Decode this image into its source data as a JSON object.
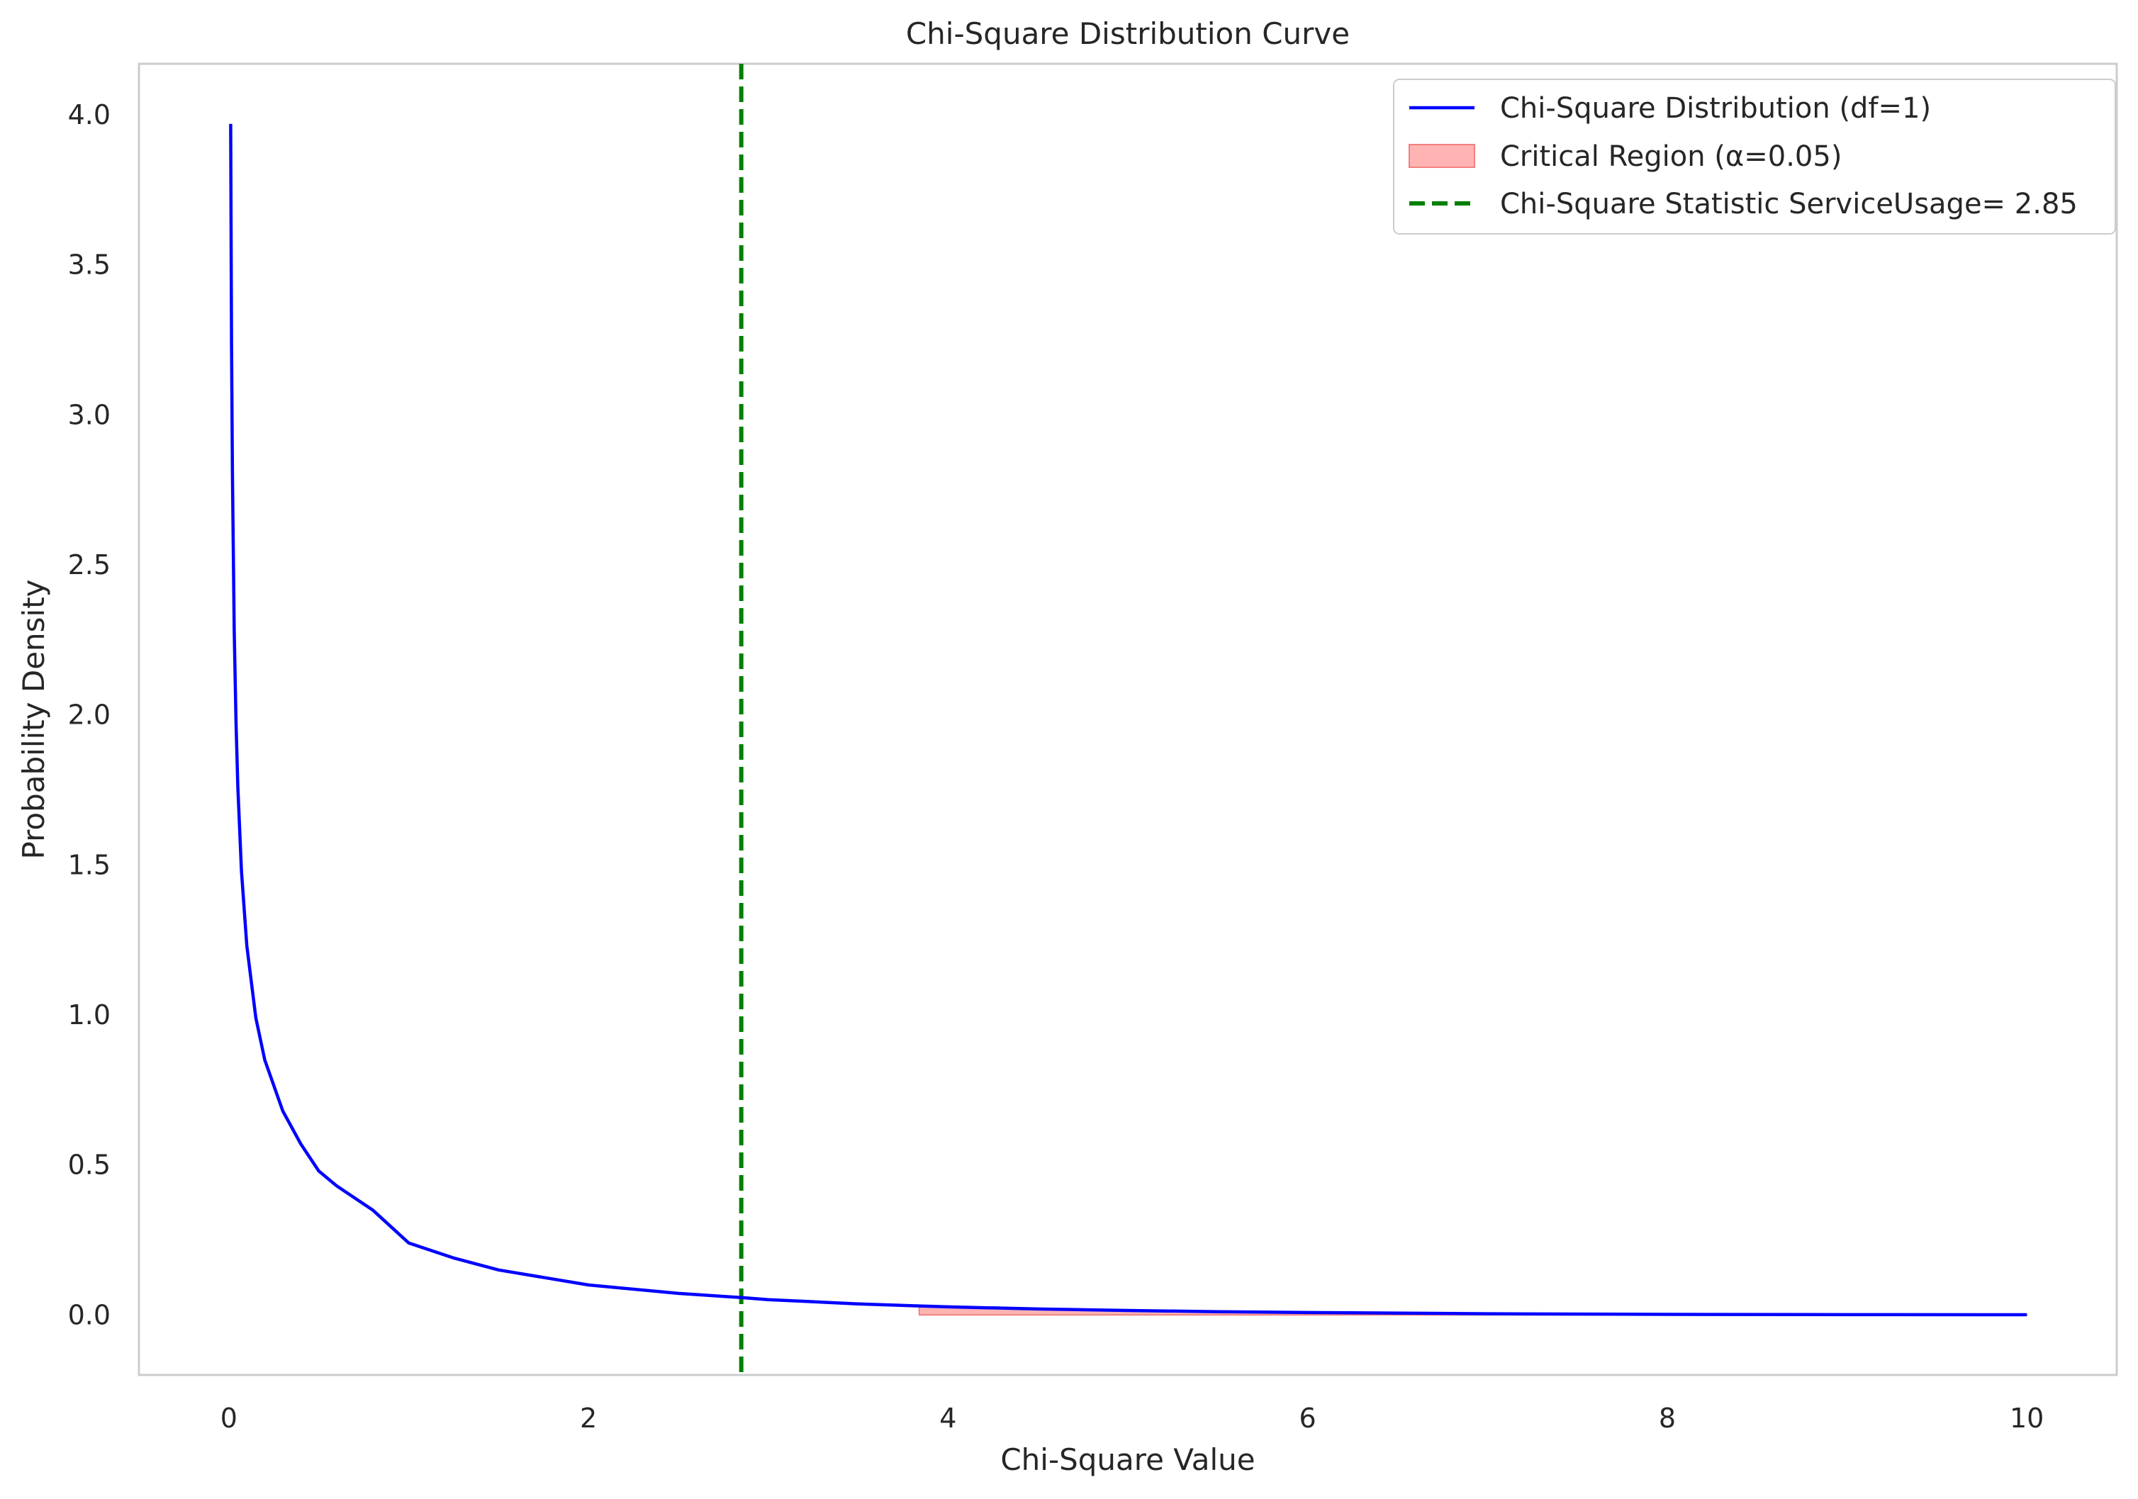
{
  "chart_data": {
    "type": "line",
    "title": "Chi-Square Distribution Curve",
    "xlabel": "Chi-Square Value",
    "ylabel": "Probability Density",
    "xlim": [
      -0.5,
      10.5
    ],
    "ylim": [
      -0.2,
      4.17
    ],
    "xticks": [
      0,
      2,
      4,
      6,
      8,
      10
    ],
    "xtick_labels": [
      "0",
      "2",
      "4",
      "6",
      "8",
      "10"
    ],
    "yticks": [
      0.0,
      0.5,
      1.0,
      1.5,
      2.0,
      2.5,
      3.0,
      3.5,
      4.0
    ],
    "ytick_labels": [
      "0.0",
      "0.5",
      "1.0",
      "1.5",
      "2.0",
      "2.5",
      "3.0",
      "3.5",
      "4.0"
    ],
    "grid": false,
    "legend_position": "top-right",
    "df": 1,
    "series": [
      {
        "name": "Chi-Square Distribution (df=1)",
        "color": "#0000ff",
        "x": [
          0.01,
          0.015,
          0.02,
          0.03,
          0.04,
          0.05,
          0.07,
          0.1,
          0.15,
          0.2,
          0.3,
          0.4,
          0.5,
          0.6,
          0.8,
          1.0,
          1.25,
          1.5,
          2.0,
          2.5,
          2.85,
          3.0,
          3.5,
          3.84,
          4.0,
          4.5,
          5.0,
          5.5,
          6.0,
          7.0,
          8.0,
          9.0,
          10.0
        ],
        "y": [
          3.97,
          3.24,
          2.8,
          2.28,
          1.97,
          1.76,
          1.48,
          1.23,
          0.99,
          0.85,
          0.68,
          0.57,
          0.48,
          0.43,
          0.35,
          0.24,
          0.19,
          0.15,
          0.1,
          0.072,
          0.058,
          0.051,
          0.037,
          0.03,
          0.027,
          0.02,
          0.015,
          0.011,
          0.008,
          0.004,
          0.002,
          0.001,
          0.0009
        ]
      }
    ],
    "critical_region": {
      "name": "Critical Region (α=0.05)",
      "color": "#ff9999",
      "x_start": 3.84,
      "x_end": 10.0
    },
    "vline": {
      "name": "Chi-Square Statistic ServiceUsage= 2.85",
      "x": 2.85,
      "color": "#008000",
      "style": "dashed"
    }
  }
}
